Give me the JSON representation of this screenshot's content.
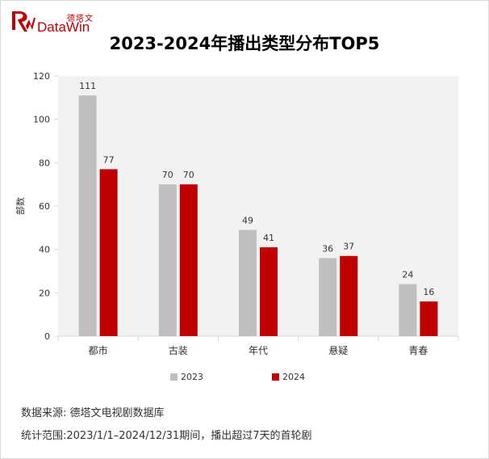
{
  "logo": {
    "cn": "德塔文",
    "en": "DataWin"
  },
  "chart_data": {
    "type": "bar",
    "title": "2023-2024年播出类型分布TOP5",
    "categories": [
      "都市",
      "古装",
      "年代",
      "悬疑",
      "青春"
    ],
    "series": [
      {
        "name": "2023",
        "values": [
          111,
          70,
          49,
          36,
          24
        ],
        "color": "#bfbfbf"
      },
      {
        "name": "2024",
        "values": [
          77,
          70,
          41,
          37,
          16
        ],
        "color": "#c00000"
      }
    ],
    "ylabel": "部数",
    "ylim": [
      0,
      120
    ],
    "yticks": [
      0,
      20,
      40,
      60,
      80,
      100,
      120
    ],
    "grid": false,
    "legend": "bottom"
  },
  "notes": {
    "source": "数据来源: 德塔文电视剧数据库",
    "range": "统计范围:2023/1/1–2024/12/31期间，播出超过7天的首轮剧"
  }
}
